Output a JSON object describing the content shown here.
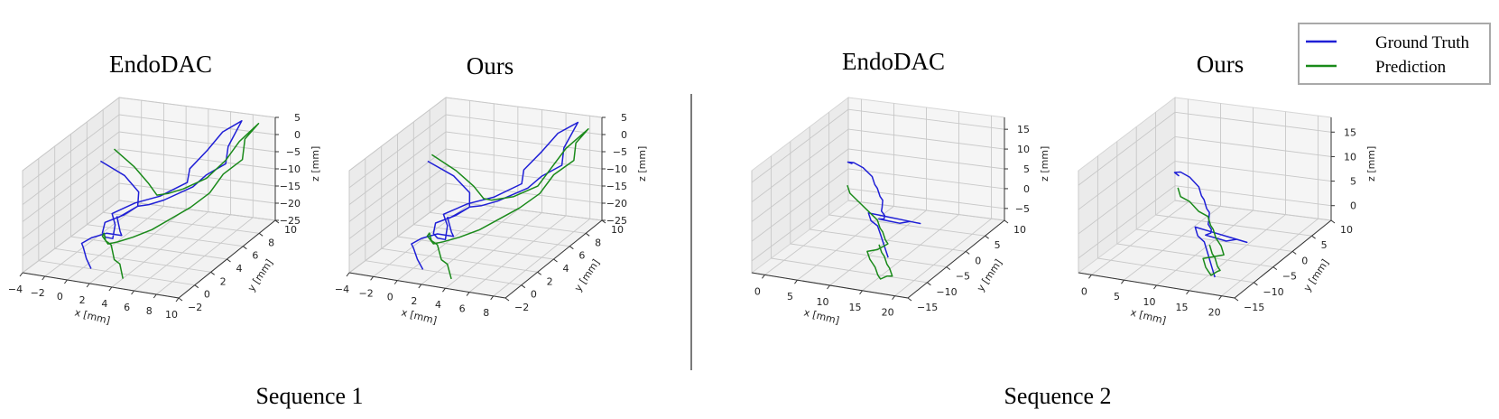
{
  "legend": {
    "entries": [
      {
        "label": "Ground Truth",
        "color": "#1f1fd6"
      },
      {
        "label": "Prediction",
        "color": "#1a8a1a"
      }
    ],
    "placement": "top-right"
  },
  "sequences": [
    {
      "label": "Sequence 1"
    },
    {
      "label": "Sequence 2"
    }
  ],
  "chart_data": [
    {
      "type": "line",
      "projection": "3d",
      "title": "EndoDAC",
      "sequence": "Sequence 1",
      "xlabel": "x [mm]",
      "ylabel": "y [mm]",
      "zlabel": "z [mm]",
      "xlim": [
        -4,
        10
      ],
      "ylim": [
        -2,
        10
      ],
      "zlim": [
        -25,
        5
      ],
      "x_ticks": [
        -4,
        -2,
        0,
        2,
        4,
        6,
        8,
        10
      ],
      "y_ticks": [
        -2,
        0,
        2,
        4,
        6,
        8,
        10
      ],
      "z_ticks": [
        -25,
        -20,
        -15,
        -10,
        -5,
        0,
        5
      ],
      "grid": true,
      "series": [
        {
          "name": "Ground Truth",
          "color": "#1f1fd6",
          "x": [
            -3.5,
            -1,
            1,
            2,
            1.5,
            0.5,
            1,
            2,
            3,
            2.5,
            1.5,
            2.5,
            4,
            5,
            4.5,
            5,
            6,
            7,
            6.5,
            7,
            6,
            5.5,
            4,
            3,
            2,
            1.5,
            1,
            0.5,
            1,
            1.5,
            2,
            1,
            0,
            -0.5,
            0,
            1,
            2
          ],
          "y": [
            7,
            6.5,
            5.5,
            4,
            3,
            2,
            1,
            0,
            -0.5,
            0.5,
            1.5,
            3,
            4,
            6,
            7,
            8.5,
            9,
            10,
            9,
            8,
            7,
            6,
            4.5,
            4,
            4,
            3.5,
            3,
            3.5,
            3,
            2.5,
            2,
            1.5,
            1,
            0.5,
            0,
            -1,
            -1.8
          ],
          "z": [
            -8,
            -10,
            -12,
            -13,
            -14,
            -15,
            -16,
            -15,
            -14,
            -12,
            -11,
            -10,
            -9,
            -8,
            -6,
            -3,
            2,
            4,
            -2,
            -5,
            -7,
            -9,
            -11,
            -12,
            -13,
            -14,
            -15,
            -16,
            -17,
            -18,
            -18,
            -17,
            -18,
            -19,
            -19,
            -20,
            -21
          ]
        },
        {
          "name": "Prediction",
          "color": "#1a8a1a",
          "x": [
            -3,
            -0.5,
            1.5,
            3,
            4,
            5,
            6,
            7,
            7.5,
            8.5,
            8,
            8.5,
            7.5,
            7,
            6,
            5,
            4,
            3,
            2,
            1.5,
            1,
            1.5,
            2,
            2.5,
            3,
            3.5,
            4,
            4.5,
            5
          ],
          "y": [
            8,
            7,
            6,
            5,
            5,
            5.5,
            7,
            8,
            9,
            10,
            9,
            8,
            7,
            6,
            5,
            4,
            3,
            2,
            1.5,
            1,
            1,
            0.5,
            0,
            0,
            -0.5,
            -1,
            -1,
            -1.5,
            -2
          ],
          "z": [
            -6,
            -8,
            -10,
            -11,
            -10,
            -9,
            -8,
            -4,
            0,
            4,
            1,
            -3,
            -6,
            -10,
            -13,
            -15,
            -17,
            -18,
            -19,
            -19,
            -17,
            -15,
            -16,
            -17,
            -18,
            -19,
            -20,
            -21,
            -22
          ]
        }
      ]
    },
    {
      "type": "line",
      "projection": "3d",
      "title": "Ours",
      "sequence": "Sequence 1",
      "xlabel": "x [mm]",
      "ylabel": "y [mm]",
      "zlabel": "z [mm]",
      "xlim": [
        -4,
        9
      ],
      "ylim": [
        -2,
        10
      ],
      "zlim": [
        -25,
        5
      ],
      "x_ticks": [
        -4,
        -2,
        0,
        2,
        4,
        6,
        8
      ],
      "y_ticks": [
        -2,
        0,
        2,
        4,
        6,
        8,
        10
      ],
      "z_ticks": [
        -25,
        -20,
        -15,
        -10,
        -5,
        0,
        5
      ],
      "grid": true,
      "series": [
        {
          "name": "Ground Truth",
          "color": "#1f1fd6",
          "x": [
            -3.5,
            -1,
            1,
            2,
            1.5,
            0.5,
            1,
            2,
            3,
            2.5,
            1.5,
            2.5,
            4,
            5,
            4.5,
            5,
            6,
            7,
            6.5,
            7,
            6,
            5.5,
            4,
            3,
            2,
            1.5,
            1,
            0.5,
            1,
            1.5,
            2,
            1,
            0,
            -0.5,
            0,
            1,
            2
          ],
          "y": [
            7,
            6.5,
            5.5,
            4,
            3,
            2,
            1,
            0,
            -0.5,
            0.5,
            1.5,
            3,
            4,
            6,
            7,
            8.5,
            9,
            10,
            9,
            8,
            7,
            6,
            4.5,
            4,
            4,
            3.5,
            3,
            3.5,
            3,
            2.5,
            2,
            1.5,
            1,
            0.5,
            0,
            -1,
            -1.8
          ],
          "z": [
            -8,
            -10,
            -12,
            -13,
            -14,
            -15,
            -16,
            -15,
            -14,
            -12,
            -11,
            -10,
            -9,
            -8,
            -6,
            -3,
            2,
            4,
            -2,
            -5,
            -7,
            -9,
            -11,
            -12,
            -13,
            -14,
            -15,
            -16,
            -17,
            -18,
            -18,
            -17,
            -18,
            -19,
            -19,
            -20,
            -21
          ]
        },
        {
          "name": "Prediction",
          "color": "#1a8a1a",
          "x": [
            -3.5,
            -1,
            1,
            2.5,
            3.5,
            5,
            6,
            6.5,
            7,
            8,
            7.5,
            8,
            7,
            6.5,
            5.5,
            4.5,
            3.5,
            2.5,
            1.5,
            1,
            0.5,
            1,
            1.5,
            2,
            2.5,
            3,
            3.5,
            4,
            4.5
          ],
          "y": [
            7.5,
            6.8,
            6,
            5,
            4.5,
            5,
            6.5,
            7.5,
            8.5,
            9.8,
            9,
            8,
            7,
            6,
            5,
            4,
            3,
            2,
            1.5,
            1,
            1,
            0.5,
            0,
            0,
            -0.5,
            -1,
            -1,
            -1.5,
            -2
          ],
          "z": [
            -7,
            -9,
            -11,
            -12,
            -11,
            -10,
            -9,
            -5,
            -1,
            3,
            0,
            -3,
            -6,
            -10,
            -13,
            -15,
            -17,
            -18,
            -19,
            -19,
            -17,
            -15,
            -16,
            -17,
            -18,
            -19,
            -20,
            -21,
            -22
          ]
        }
      ]
    },
    {
      "type": "line",
      "projection": "3d",
      "title": "EndoDAC",
      "sequence": "Sequence 2",
      "xlabel": "x [mm]",
      "ylabel": "y [mm]",
      "zlabel": "z [mm]",
      "xlim": [
        -2,
        22
      ],
      "ylim": [
        -15,
        10
      ],
      "zlim": [
        -8,
        18
      ],
      "x_ticks": [
        0,
        5,
        10,
        15,
        20
      ],
      "y_ticks": [
        -15,
        -10,
        -5,
        0,
        5,
        10
      ],
      "z_ticks": [
        -5,
        0,
        5,
        10,
        15
      ],
      "grid": true,
      "series": [
        {
          "name": "Ground Truth",
          "color": "#1f1fd6",
          "x": [
            1,
            1.5,
            3,
            5,
            7,
            8,
            9,
            10,
            11,
            11.5,
            12,
            12.5,
            13,
            12,
            11,
            12,
            13,
            14,
            15,
            14,
            13,
            12,
            11,
            10,
            11,
            12,
            13,
            14,
            15,
            16
          ],
          "y": [
            6,
            4,
            3,
            2,
            1,
            0,
            -1,
            -2,
            -3,
            -4,
            -5,
            -5,
            -6,
            -5,
            -4,
            -3,
            -2,
            -1,
            0,
            -1,
            -2,
            -3,
            -4,
            -5,
            -6,
            -6,
            -7,
            -8,
            -9,
            -10
          ],
          "z": [
            5,
            7,
            8,
            8,
            7,
            6,
            6,
            5,
            5,
            4,
            4,
            3,
            3,
            2,
            1,
            0,
            -1,
            -1,
            -2,
            -1,
            0,
            1,
            2,
            3,
            2,
            1,
            0,
            -1,
            -2,
            -3
          ]
        },
        {
          "name": "Prediction",
          "color": "#1a8a1a",
          "x": [
            2,
            3,
            5,
            7,
            9,
            10,
            11,
            12,
            13,
            12,
            11,
            12,
            13,
            14,
            15,
            16,
            17,
            18,
            19,
            18,
            17,
            16,
            15,
            14
          ],
          "y": [
            3,
            2,
            1,
            0,
            -1,
            -2,
            -3,
            -4,
            -5,
            -6,
            -7,
            -8,
            -9,
            -10,
            -11,
            -12,
            -12,
            -13,
            -14,
            -13,
            -12,
            -11,
            -10,
            -9
          ],
          "z": [
            2,
            1,
            0,
            -1,
            -2,
            -3,
            -3,
            -4,
            -4,
            -5,
            -5,
            -6,
            -6,
            -6,
            -7,
            -7,
            -6,
            -5,
            -4,
            -3,
            -3,
            -2,
            -2,
            -1
          ]
        }
      ]
    },
    {
      "type": "line",
      "projection": "3d",
      "title": "Ours",
      "sequence": "Sequence 2",
      "xlabel": "x [mm]",
      "ylabel": "y [mm]",
      "zlabel": "z [mm]",
      "xlim": [
        -2,
        22
      ],
      "ylim": [
        -15,
        10
      ],
      "zlim": [
        -3,
        18
      ],
      "x_ticks": [
        0,
        5,
        10,
        15,
        20
      ],
      "y_ticks": [
        -15,
        -10,
        -5,
        0,
        5,
        10
      ],
      "z_ticks": [
        0,
        5,
        10,
        15
      ],
      "grid": true,
      "series": [
        {
          "name": "Ground Truth",
          "color": "#1f1fd6",
          "x": [
            1,
            1.5,
            3,
            5,
            7,
            8,
            9,
            10,
            11,
            11.5,
            12,
            12.5,
            13,
            12,
            11,
            12,
            13,
            14,
            15,
            14,
            13,
            12,
            11,
            10,
            11,
            12,
            13,
            14,
            15,
            16
          ],
          "y": [
            6,
            4,
            3,
            2,
            1,
            0,
            -1,
            -2,
            -3,
            -4,
            -5,
            -5,
            -6,
            -5,
            -4,
            -3,
            -2,
            -1,
            0,
            -1,
            -2,
            -3,
            -4,
            -5,
            -6,
            -6,
            -7,
            -8,
            -9,
            -10
          ],
          "z": [
            5,
            7,
            8,
            8,
            7,
            6,
            6,
            5,
            5,
            4,
            4,
            3,
            3,
            2,
            1,
            0,
            -1,
            -1,
            -2,
            -1,
            0,
            1,
            2,
            3,
            2,
            1,
            0,
            -1,
            -2,
            -3
          ]
        },
        {
          "name": "Prediction",
          "color": "#1a8a1a",
          "x": [
            2,
            3,
            5,
            7,
            9,
            10,
            11,
            12,
            13,
            14,
            15,
            14,
            13,
            14,
            15,
            16,
            17,
            18,
            17,
            16,
            15,
            14
          ],
          "y": [
            4,
            3,
            2,
            1,
            0,
            -1,
            -2,
            -3,
            -4,
            -5,
            -6,
            -7,
            -8,
            -9,
            -10,
            -11,
            -11,
            -12,
            -11,
            -10,
            -9,
            -8
          ],
          "z": [
            4,
            3,
            3,
            2,
            2,
            1,
            1,
            0,
            0,
            0,
            -1,
            -1,
            -1,
            -2,
            -2,
            -2,
            -1,
            0,
            0,
            1,
            1,
            2
          ]
        }
      ]
    }
  ]
}
